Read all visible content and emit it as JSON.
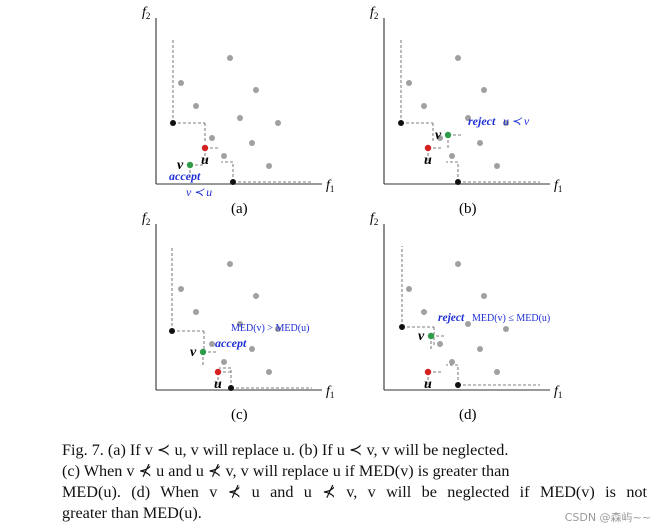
{
  "colors": {
    "axis": "#333333",
    "gray_point": "#a0a0a0",
    "black_point": "#111111",
    "u_point": "#d42020",
    "v_point": "#2e9a4a",
    "annotation": "#1f2fd6",
    "dash": "#555555"
  },
  "axes": {
    "f1": "f",
    "f1_sub": "1",
    "f2": "f",
    "f2_sub": "2"
  },
  "panels": [
    {
      "label": "(a)",
      "u": "u",
      "v": "v",
      "annotations": [
        "accept",
        "v ≺ u"
      ]
    },
    {
      "label": "(b)",
      "u": "u",
      "v": "v",
      "annotations": [
        "reject",
        "u ≺ v"
      ]
    },
    {
      "label": "(c)",
      "u": "u",
      "v": "v",
      "annotations": [
        "MED(v) > MED(u)",
        "accept"
      ]
    },
    {
      "label": "(d)",
      "u": "u",
      "v": "v",
      "annotations": [
        "reject",
        "MED(v) ≤ MED(u)"
      ]
    }
  ],
  "caption": {
    "lines": [
      "Fig. 7.   (a) If v ≺ u, v will replace u. (b) If u ≺ v, v will be neglected.",
      "(c) When v ⊀ u and u ⊀ v, v will replace u if MED(v) is greater than",
      "MED(u). (d) When v ⊀ u and u ⊀ v, v will be neglected if MED(v) is not",
      "greater than MED(u)."
    ]
  },
  "watermark": "CSDN @森屿~~"
}
